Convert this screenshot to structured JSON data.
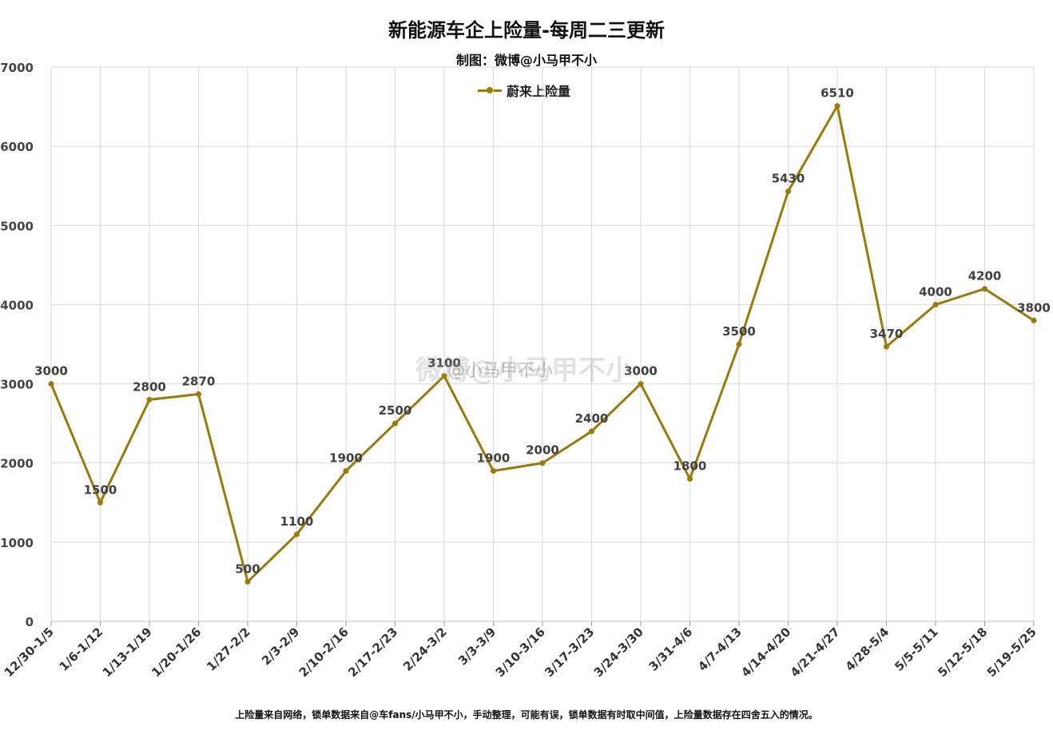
{
  "title": "新能源车企上险量-每周二三更新",
  "subtitle": "制图：微博@小马甲不小",
  "footnote": "上险量来自网络，锁单数据来自@车fans/小马甲不小，手动整理，可能有误，锁单数据有时取中间值，上险量数据存在四舍五入的情况。",
  "watermark": {
    "main": "微博@小马甲不小",
    "small": "@小马甲不小"
  },
  "chart_data": {
    "type": "line",
    "title": "新能源车企上险量-每周二三更新",
    "subtitle": "制图：微博@小马甲不小",
    "xlabel": "",
    "ylabel": "",
    "ylim": [
      0,
      7000
    ],
    "yticks": [
      0,
      1000,
      2000,
      3000,
      4000,
      5000,
      6000,
      7000
    ],
    "grid": true,
    "legend_position": "top-center",
    "categories": [
      "12/30-1/5",
      "1/6-1/12",
      "1/13-1/19",
      "1/20-1/26",
      "1/27-2/2",
      "2/3-2/9",
      "2/10-2/16",
      "2/17-2/23",
      "2/24-3/2",
      "3/3-3/9",
      "3/10-3/16",
      "3/17-3/23",
      "3/24-3/30",
      "3/31-4/6",
      "4/7-4/13",
      "4/14-4/20",
      "4/21-4/27",
      "4/28-5/4",
      "5/5-5/11",
      "5/12-5/18",
      "5/19-5/25"
    ],
    "series": [
      {
        "name": "蔚来上险量",
        "color": "#9a7a0a",
        "values": [
          3000,
          1500,
          2800,
          2870,
          500,
          1100,
          1900,
          2500,
          3100,
          1900,
          2000,
          2400,
          3000,
          1800,
          3500,
          5430,
          6510,
          3470,
          4000,
          4200,
          3800
        ]
      }
    ]
  }
}
